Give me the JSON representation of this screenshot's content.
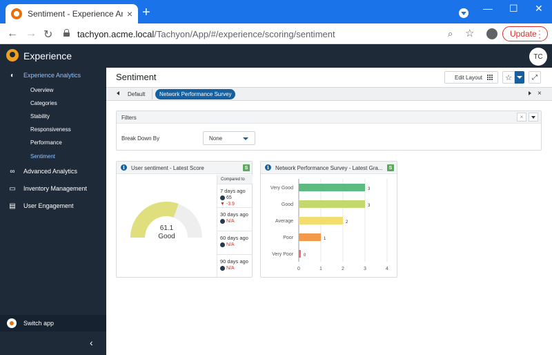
{
  "browser": {
    "tab_title": "Sentiment - Experience Analytics",
    "tab_close": "×",
    "new_tab": "+",
    "url_host": "tachyon.acme.local",
    "url_path": "/Tachyon/App/#/experience/scoring/sentiment",
    "update_label": "Update",
    "window_controls": {
      "minimize": "—",
      "maximize": "☐",
      "close": "✕"
    },
    "nav": {
      "back": "←",
      "forward": "→",
      "reload": "↻"
    },
    "icons": {
      "zoom": "⌕",
      "bookmark": "☆"
    }
  },
  "app": {
    "name": "Experience",
    "user_initials": "TC"
  },
  "sidebar": {
    "sections": [
      {
        "label": "Experience Analytics",
        "icon": "dashboard-icon",
        "glyph": "◐",
        "active": true
      },
      {
        "label": "Advanced Analytics",
        "icon": "binoculars-icon",
        "glyph": "∞",
        "active": false
      },
      {
        "label": "Inventory Management",
        "icon": "monitor-icon",
        "glyph": "▭",
        "active": false
      },
      {
        "label": "User Engagement",
        "icon": "clipboard-icon",
        "glyph": "▤",
        "active": false
      }
    ],
    "items": [
      {
        "label": "Overview",
        "active": false
      },
      {
        "label": "Categories",
        "active": false
      },
      {
        "label": "Stability",
        "active": false
      },
      {
        "label": "Responsiveness",
        "active": false
      },
      {
        "label": "Performance",
        "active": false
      },
      {
        "label": "Sentiment",
        "active": true
      }
    ],
    "switch_app": "Switch app",
    "collapse_glyph": "‹"
  },
  "page": {
    "title": "Sentiment",
    "edit_layout": "Edit Layout",
    "star_glyph": "☆",
    "expand_glyph": "⤢",
    "tabs": {
      "default": "Default",
      "active": "Network Performance Survey",
      "close": "×"
    }
  },
  "filters": {
    "title": "Filters",
    "clear_glyph": "×",
    "break_down_label": "Break Down By",
    "break_down_value": "None"
  },
  "score_widget": {
    "title": "User sentiment - Latest Score",
    "badge": "S",
    "score": "61.1",
    "score_max": 100,
    "score_label": "Good",
    "gauge_color": "#dfdf7e",
    "compared_header": "Compared to",
    "comparisons": [
      {
        "period": "7 days ago",
        "value": "65",
        "delta": "-3.9"
      },
      {
        "period": "30 days ago",
        "value": "N/A"
      },
      {
        "period": "60 days ago",
        "value": "N/A"
      },
      {
        "period": "90 days ago",
        "value": "N/A"
      }
    ]
  },
  "survey_widget": {
    "title": "Network Performance Survey - Latest Gra...",
    "badge": "S"
  },
  "chart_data": {
    "type": "bar",
    "orientation": "horizontal",
    "categories": [
      "Very Good",
      "Good",
      "Average",
      "Poor",
      "Very Poor"
    ],
    "values": [
      3,
      3,
      2,
      1,
      0
    ],
    "colors": [
      "#5dbb82",
      "#c3d86d",
      "#f4dd6f",
      "#f2994a",
      "#e57373"
    ],
    "xlim": [
      0,
      4
    ],
    "xticks": [
      0,
      1,
      2,
      3,
      4
    ],
    "grid": true
  }
}
